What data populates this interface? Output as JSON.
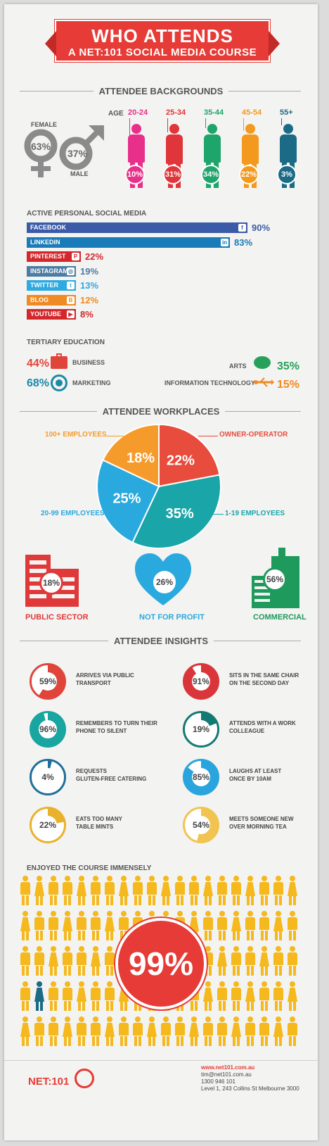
{
  "header": {
    "title": "WHO ATTENDS",
    "subtitle": "A NET:101 SOCIAL MEDIA COURSE"
  },
  "backgrounds": {
    "title": "ATTENDEE BACKGROUNDS",
    "female_label": "FEMALE",
    "female_pct": "63%",
    "male_label": "MALE",
    "male_pct": "37%",
    "age_label": "AGE",
    "ages": [
      {
        "range": "20-24",
        "pct": "10%",
        "color": "#e8308a"
      },
      {
        "range": "25-34",
        "pct": "31%",
        "color": "#e0353a"
      },
      {
        "range": "35-44",
        "pct": "34%",
        "color": "#1ea56b"
      },
      {
        "range": "45-54",
        "pct": "22%",
        "color": "#f39a1e"
      },
      {
        "range": "55+",
        "pct": "3%",
        "color": "#1b6b86"
      }
    ]
  },
  "social": {
    "title": "ACTIVE PERSONAL SOCIAL MEDIA",
    "items": [
      {
        "name": "FACEBOOK",
        "pct": "90%",
        "value": 90,
        "color": "#3b5ba8",
        "icon": "f"
      },
      {
        "name": "LINKEDIN",
        "pct": "83%",
        "value": 83,
        "color": "#1a7bb9",
        "icon": "in"
      },
      {
        "name": "PINTEREST",
        "pct": "22%",
        "value": 22,
        "color": "#d4272c",
        "icon": "P"
      },
      {
        "name": "INSTAGRAM",
        "pct": "19%",
        "value": 19,
        "color": "#4d7ca3",
        "icon": "◎"
      },
      {
        "name": "TWITTER",
        "pct": "13%",
        "value": 13,
        "color": "#2eaae1",
        "icon": "t"
      },
      {
        "name": "BLOG",
        "pct": "12%",
        "value": 12,
        "color": "#f08a24",
        "icon": "B"
      },
      {
        "name": "YOUTUBE",
        "pct": "8%",
        "value": 8,
        "color": "#d4272c",
        "icon": "▶"
      }
    ]
  },
  "education": {
    "title": "TERTIARY EDUCATION",
    "items": [
      {
        "name": "BUSINESS",
        "pct": "44%",
        "color": "#e0453c",
        "icon": "briefcase-icon"
      },
      {
        "name": "MARKETING",
        "pct": "68%",
        "color": "#1b8aa7",
        "icon": "target-icon"
      },
      {
        "name": "ARTS",
        "pct": "35%",
        "color": "#27a15a",
        "icon": "speech-bubble-icon"
      },
      {
        "name": "INFORMATION TECHNOLOGY",
        "pct": "15%",
        "color": "#f08a24",
        "icon": "usb-icon"
      }
    ]
  },
  "workplaces": {
    "title": "ATTENDEE WORKPLACES",
    "slices": [
      {
        "label": "OWNER-OPERATOR",
        "pct": "22%",
        "value": 22,
        "color": "#e74c3c"
      },
      {
        "label": "1-19 EMPLOYEES",
        "pct": "35%",
        "value": 35,
        "color": "#1aa5a8"
      },
      {
        "label": "20-99 EMPLOYEES",
        "pct": "25%",
        "value": 25,
        "color": "#2aa9de"
      },
      {
        "label": "100+ EMPLOYEES",
        "pct": "18%",
        "value": 18,
        "color": "#f59b2c"
      }
    ],
    "sectors": [
      {
        "label": "PUBLIC SECTOR",
        "pct": "18%",
        "color": "#e0393a"
      },
      {
        "label": "NOT FOR PROFIT",
        "pct": "26%",
        "color": "#2aa9de"
      },
      {
        "label": "COMMERCIAL",
        "pct": "56%",
        "color": "#1e9a5c"
      }
    ]
  },
  "insights": {
    "title": "ATTENDEE INSIGHTS",
    "items": [
      {
        "pct": "59%",
        "value": 59,
        "color": "#e0453c",
        "line1": "ARRIVES VIA PUBLIC",
        "line2": "TRANSPORT"
      },
      {
        "pct": "91%",
        "value": 91,
        "color": "#d9353a",
        "line1": "SITS IN THE SAME CHAIR",
        "line2": "ON THE SECOND DAY"
      },
      {
        "pct": "96%",
        "value": 96,
        "color": "#19a5a0",
        "line1": "REMEMBERS TO TURN THEIR",
        "line2": "PHONE TO SILENT"
      },
      {
        "pct": "19%",
        "value": 19,
        "color": "#127a73",
        "line1": "ATTENDS WITH A WORK",
        "line2": "COLLEAGUE"
      },
      {
        "pct": "4%",
        "value": 4,
        "color": "#1e6f9a",
        "line1": "REQUESTS",
        "line2": "GLUTEN-FREE CATERING"
      },
      {
        "pct": "85%",
        "value": 85,
        "color": "#2aa4dc",
        "line1": "LAUGHS AT LEAST",
        "line2": "ONCE BY 10AM"
      },
      {
        "pct": "22%",
        "value": 22,
        "color": "#eab12c",
        "line1": "EATS TOO MANY",
        "line2": "TABLE MINTS"
      },
      {
        "pct": "54%",
        "value": 54,
        "color": "#f1c451",
        "line1": "MEETS SOMEONE NEW",
        "line2": "OVER MORNING TEA"
      }
    ]
  },
  "enjoyed": {
    "title": "ENJOYED THE COURSE IMMENSELY",
    "pct": "99%",
    "value": 99,
    "color": "#f5b81d",
    "accent": "#e63b36"
  },
  "footer": {
    "logo": "NET:101",
    "website": "www.net101.com.au",
    "email": "tim@net101.com.au",
    "phone": "1300 946 101",
    "address": "Level 1, 243 Collins St Melbourne 3000"
  }
}
